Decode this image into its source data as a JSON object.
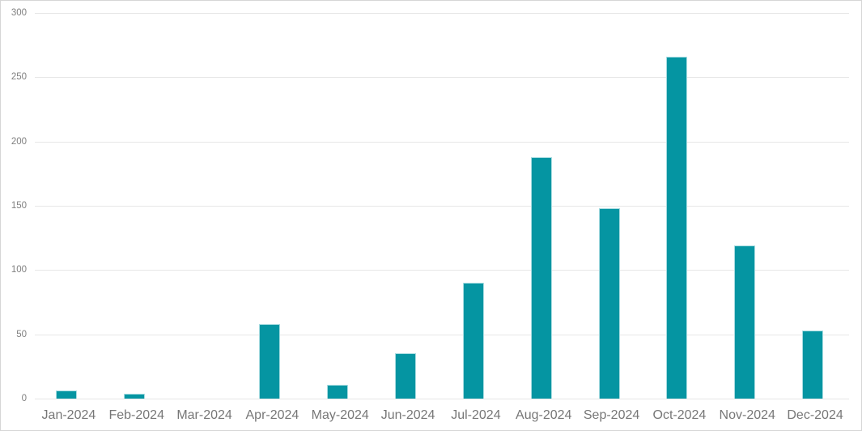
{
  "chart_data": {
    "type": "bar",
    "title": "",
    "xlabel": "",
    "ylabel": "",
    "categories": [
      "Jan-2024",
      "Feb-2024",
      "Mar-2024",
      "Apr-2024",
      "May-2024",
      "Jun-2024",
      "Jul-2024",
      "Aug-2024",
      "Sep-2024",
      "Oct-2024",
      "Nov-2024",
      "Dec-2024"
    ],
    "values": [
      6,
      4,
      0,
      58,
      11,
      35,
      90,
      188,
      148,
      266,
      119,
      53
    ],
    "ylim": [
      0,
      300
    ],
    "yticks": [
      0,
      50,
      100,
      150,
      200,
      250,
      300
    ],
    "grid": true,
    "legend": false,
    "colors": {
      "bar": "#0595a2",
      "bar_border": "#a8dce1",
      "gridline": "#e7e7e7",
      "axis_tick_label": "#808080",
      "category_label": "#777777",
      "frame_border": "#d6d6d6",
      "background": "#ffffff"
    }
  }
}
